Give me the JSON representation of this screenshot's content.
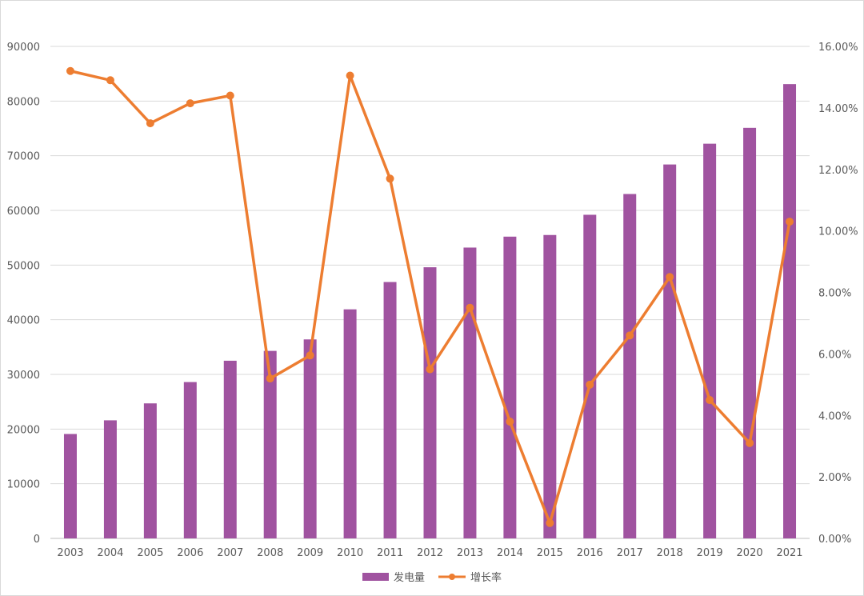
{
  "chart_data": {
    "type": "bar+line",
    "categories": [
      "2003",
      "2004",
      "2005",
      "2006",
      "2007",
      "2008",
      "2009",
      "2010",
      "2011",
      "2012",
      "2013",
      "2014",
      "2015",
      "2016",
      "2017",
      "2018",
      "2019",
      "2020",
      "2021"
    ],
    "series": [
      {
        "name": "发电量",
        "type": "bar",
        "axis": "left",
        "color": "#A053A0",
        "values": [
          19100,
          21600,
          24700,
          28600,
          32500,
          34300,
          36400,
          41900,
          46900,
          49600,
          53200,
          55200,
          55500,
          59200,
          63000,
          68400,
          72200,
          75100,
          83100
        ]
      },
      {
        "name": "增长率",
        "type": "line",
        "axis": "right",
        "color": "#ED7D31",
        "values": [
          15.2,
          14.9,
          13.5,
          14.15,
          14.4,
          5.2,
          5.95,
          15.05,
          11.7,
          5.5,
          7.5,
          3.8,
          0.5,
          5.0,
          6.6,
          8.5,
          4.5,
          3.1,
          10.3
        ]
      }
    ],
    "y_left": {
      "min": 0,
      "max": 90000,
      "step": 10000,
      "ticks": [
        "0",
        "10000",
        "20000",
        "30000",
        "40000",
        "50000",
        "60000",
        "70000",
        "80000",
        "90000"
      ]
    },
    "y_right": {
      "min": 0,
      "max": 16,
      "step": 2,
      "ticks": [
        "0.00%",
        "2.00%",
        "4.00%",
        "6.00%",
        "8.00%",
        "10.00%",
        "12.00%",
        "14.00%",
        "16.00%"
      ]
    },
    "grid": true,
    "legend_position": "bottom-center",
    "title": "",
    "xlabel": "",
    "ylabel": ""
  }
}
